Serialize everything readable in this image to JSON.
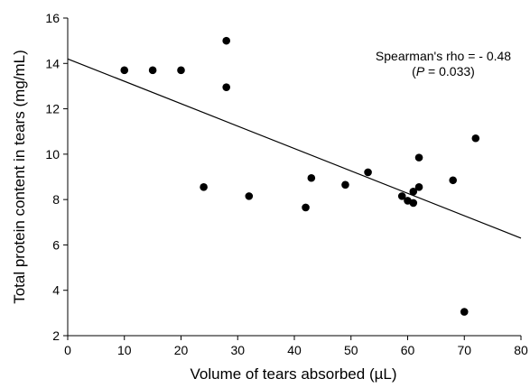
{
  "chart_data": {
    "type": "scatter",
    "xlabel": "Volume of tears absorbed (µL)",
    "ylabel": "Total protein content in tears (mg/mL)",
    "xlim": [
      0,
      80
    ],
    "ylim": [
      2,
      16
    ],
    "xticks": [
      0,
      10,
      20,
      30,
      40,
      50,
      60,
      70,
      80
    ],
    "yticks": [
      2,
      4,
      6,
      8,
      10,
      12,
      14,
      16
    ],
    "grid": false,
    "points": [
      {
        "x": 10,
        "y": 13.7
      },
      {
        "x": 15,
        "y": 13.7
      },
      {
        "x": 20,
        "y": 13.7
      },
      {
        "x": 24,
        "y": 8.55
      },
      {
        "x": 28,
        "y": 15.0
      },
      {
        "x": 28,
        "y": 12.95
      },
      {
        "x": 32,
        "y": 8.15
      },
      {
        "x": 42,
        "y": 7.65
      },
      {
        "x": 43,
        "y": 8.95
      },
      {
        "x": 49,
        "y": 8.65
      },
      {
        "x": 53,
        "y": 9.2
      },
      {
        "x": 59,
        "y": 8.15
      },
      {
        "x": 60,
        "y": 7.95
      },
      {
        "x": 61,
        "y": 7.85
      },
      {
        "x": 61,
        "y": 8.35
      },
      {
        "x": 62,
        "y": 8.55
      },
      {
        "x": 62,
        "y": 9.85
      },
      {
        "x": 68,
        "y": 8.85
      },
      {
        "x": 70,
        "y": 3.05
      },
      {
        "x": 72,
        "y": 10.7
      }
    ],
    "trendline": {
      "x": [
        0,
        80
      ],
      "y": [
        14.2,
        6.3
      ]
    },
    "annotation": {
      "line1": "Spearman's rho = - 0.48",
      "line2_prefix": "(",
      "line2_italic": "P",
      "line2_suffix": " = 0.033)"
    },
    "colors": {
      "marker": "#000000",
      "line": "#000000",
      "axis": "#000000"
    }
  }
}
